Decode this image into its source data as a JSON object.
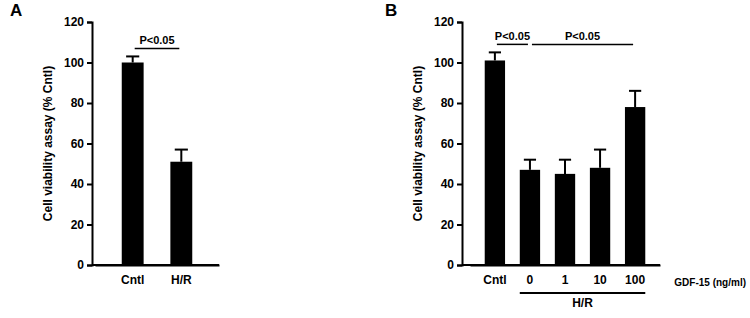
{
  "chart_data": [
    {
      "type": "bar",
      "title": "A",
      "y_label": "Cell viability assay (% Cntl)",
      "categories": [
        "Cntl",
        "H/R"
      ],
      "values": [
        100,
        51
      ],
      "errors": [
        3,
        6
      ],
      "color": "#000000",
      "ylim": [
        0,
        120
      ],
      "yticks": [
        0,
        20,
        40,
        60,
        80,
        100,
        120
      ],
      "annotations": [
        {
          "text": "P<0.05",
          "start": 0,
          "end": 1
        }
      ]
    },
    {
      "type": "bar",
      "title": "B",
      "y_label": "Cell viability assay (% Cntl)",
      "x_label": "GDF-15 (ng/ml)",
      "categories": [
        "Cntl",
        "0",
        "1",
        "10",
        "100"
      ],
      "values": [
        101,
        47,
        45,
        48,
        78
      ],
      "errors": [
        4,
        5,
        7,
        9,
        8
      ],
      "color": "#000000",
      "ylim": [
        0,
        120
      ],
      "yticks": [
        0,
        20,
        40,
        60,
        80,
        100,
        120
      ],
      "group_label": {
        "text": "H/R",
        "start": 1,
        "end": 4
      },
      "annotations": [
        {
          "text": "P<0.05",
          "start": 0,
          "end": 1
        },
        {
          "text": "P<0.05",
          "start": 1,
          "end": 4
        }
      ]
    }
  ]
}
